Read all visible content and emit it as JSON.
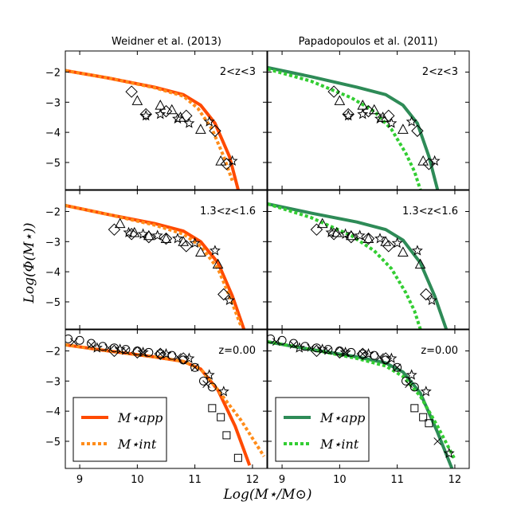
{
  "figure": {
    "ylabel": "Log(Φ(M⋆))",
    "xlabel": "Log(M⋆/M⊙)",
    "column_titles": [
      "Weidner et al. (2013)",
      "Papadopoulos et al. (2011)"
    ],
    "legend_app": "M⋆app",
    "legend_int": "M⋆int"
  },
  "colors": {
    "orange_app": "#ff4a00",
    "orange_int": "#ff8c1a",
    "green_app": "#2e8b57",
    "green_int": "#32cd32",
    "marker": "#000000"
  },
  "chart_data": [
    {
      "type": "line",
      "panel": "weidner-2<z<3",
      "title": "Weidner et al. (2013)",
      "redshift_label": "2<z<3",
      "xlim": [
        8.75,
        12.25
      ],
      "ylim": [
        -5.9,
        -1.3
      ],
      "x_ticks": [
        9,
        10,
        11,
        12
      ],
      "y_ticks": [
        -2,
        -3,
        -4,
        -5
      ],
      "series": [
        {
          "name": "M app",
          "style": "solid",
          "color": "#ff4a00",
          "x": [
            8.75,
            9.5,
            10.3,
            10.8,
            11.1,
            11.35,
            11.6,
            11.75
          ],
          "y": [
            -1.95,
            -2.2,
            -2.5,
            -2.75,
            -3.1,
            -3.7,
            -4.8,
            -5.9
          ]
        },
        {
          "name": "M int",
          "style": "dotted",
          "color": "#ff8c1a",
          "x": [
            8.75,
            9.5,
            10.3,
            10.8,
            11.05,
            11.3,
            11.5,
            11.65
          ],
          "y": [
            -1.95,
            -2.2,
            -2.52,
            -2.8,
            -3.2,
            -3.9,
            -4.8,
            -5.6
          ]
        }
      ],
      "markers": [
        {
          "shape": "diamond",
          "x": [
            9.9,
            10.15,
            10.5,
            10.85,
            11.35,
            11.55
          ],
          "y": [
            -2.65,
            -3.4,
            -3.3,
            -3.45,
            -3.95,
            -5.05
          ]
        },
        {
          "shape": "triangle",
          "x": [
            10.0,
            10.4,
            10.6,
            10.75,
            11.1,
            11.45
          ],
          "y": [
            -2.95,
            -3.1,
            -3.25,
            -3.5,
            -3.9,
            -4.95
          ]
        },
        {
          "shape": "star",
          "x": [
            10.15,
            10.4,
            10.7,
            10.9,
            11.25,
            11.65
          ],
          "y": [
            -3.45,
            -3.4,
            -3.55,
            -3.7,
            -3.65,
            -4.95
          ]
        }
      ]
    },
    {
      "type": "line",
      "panel": "papadopoulos-2<z<3",
      "title": "Papadopoulos et al. (2011)",
      "redshift_label": "2<z<3",
      "xlim": [
        8.75,
        12.25
      ],
      "ylim": [
        -5.9,
        -1.3
      ],
      "x_ticks": [
        9,
        10,
        11,
        12
      ],
      "y_ticks": [
        -2,
        -3,
        -4,
        -5
      ],
      "series": [
        {
          "name": "M app",
          "style": "solid",
          "color": "#2e8b57",
          "x": [
            8.75,
            9.5,
            10.3,
            10.8,
            11.1,
            11.35,
            11.55,
            11.7
          ],
          "y": [
            -1.85,
            -2.15,
            -2.5,
            -2.75,
            -3.1,
            -3.7,
            -4.8,
            -5.9
          ]
        },
        {
          "name": "M int",
          "style": "dotted",
          "color": "#32cd32",
          "x": [
            8.75,
            9.5,
            10.2,
            10.6,
            10.9,
            11.15,
            11.3,
            11.4
          ],
          "y": [
            -1.9,
            -2.3,
            -2.85,
            -3.3,
            -3.9,
            -4.7,
            -5.3,
            -5.9
          ]
        }
      ],
      "markers": [
        {
          "shape": "diamond",
          "x": [
            9.9,
            10.15,
            10.5,
            10.85,
            11.35,
            11.55
          ],
          "y": [
            -2.65,
            -3.4,
            -3.3,
            -3.45,
            -3.95,
            -5.05
          ]
        },
        {
          "shape": "triangle",
          "x": [
            10.0,
            10.4,
            10.6,
            10.75,
            11.1,
            11.45
          ],
          "y": [
            -2.95,
            -3.1,
            -3.25,
            -3.5,
            -3.9,
            -4.95
          ]
        },
        {
          "shape": "star",
          "x": [
            10.15,
            10.4,
            10.7,
            10.9,
            11.25,
            11.65
          ],
          "y": [
            -3.45,
            -3.4,
            -3.55,
            -3.7,
            -3.65,
            -4.95
          ]
        }
      ]
    },
    {
      "type": "line",
      "panel": "weidner-1.3<z<1.6",
      "title": "Weidner et al. (2013)",
      "redshift_label": "1.3<z<1.6",
      "xlim": [
        8.75,
        12.25
      ],
      "ylim": [
        -5.9,
        -1.3
      ],
      "x_ticks": [
        9,
        10,
        11,
        12
      ],
      "y_ticks": [
        -2,
        -3,
        -4,
        -5
      ],
      "series": [
        {
          "name": "M app",
          "style": "solid",
          "color": "#ff4a00",
          "x": [
            8.75,
            9.5,
            10.3,
            10.8,
            11.1,
            11.4,
            11.65,
            11.85
          ],
          "y": [
            -1.8,
            -2.1,
            -2.4,
            -2.65,
            -3.0,
            -3.7,
            -4.8,
            -5.9
          ]
        },
        {
          "name": "M int",
          "style": "dotted",
          "color": "#ff8c1a",
          "x": [
            8.75,
            9.5,
            10.3,
            10.8,
            11.1,
            11.4,
            11.6,
            11.8
          ],
          "y": [
            -1.8,
            -2.1,
            -2.45,
            -2.75,
            -3.15,
            -3.9,
            -4.8,
            -5.8
          ]
        }
      ],
      "markers": [
        {
          "shape": "diamond",
          "x": [
            9.6,
            9.9,
            10.2,
            10.5,
            10.85,
            11.5
          ],
          "y": [
            -2.6,
            -2.75,
            -2.85,
            -2.9,
            -3.15,
            -4.75
          ]
        },
        {
          "shape": "triangle",
          "x": [
            9.7,
            9.95,
            10.2,
            10.5,
            10.8,
            11.1,
            11.4
          ],
          "y": [
            -2.4,
            -2.7,
            -2.8,
            -2.9,
            -3.0,
            -3.35,
            -3.75
          ]
        },
        {
          "shape": "star",
          "x": [
            9.85,
            10.1,
            10.35,
            10.7,
            11.0,
            11.35,
            11.6
          ],
          "y": [
            -2.7,
            -2.75,
            -2.8,
            -2.9,
            -3.05,
            -3.3,
            -4.95
          ]
        }
      ]
    },
    {
      "type": "line",
      "panel": "papadopoulos-1.3<z<1.6",
      "title": "Papadopoulos et al. (2011)",
      "redshift_label": "1.3<z<1.6",
      "xlim": [
        8.75,
        12.25
      ],
      "ylim": [
        -5.9,
        -1.3
      ],
      "x_ticks": [
        9,
        10,
        11,
        12
      ],
      "y_ticks": [
        -2,
        -3,
        -4,
        -5
      ],
      "series": [
        {
          "name": "M app",
          "style": "solid",
          "color": "#2e8b57",
          "x": [
            8.75,
            9.5,
            10.3,
            10.8,
            11.1,
            11.4,
            11.65,
            11.85
          ],
          "y": [
            -1.75,
            -2.05,
            -2.35,
            -2.6,
            -2.95,
            -3.7,
            -4.8,
            -5.9
          ]
        },
        {
          "name": "M int",
          "style": "dotted",
          "color": "#32cd32",
          "x": [
            8.75,
            9.5,
            10.2,
            10.6,
            10.9,
            11.15,
            11.3,
            11.4
          ],
          "y": [
            -1.75,
            -2.2,
            -2.8,
            -3.3,
            -3.9,
            -4.7,
            -5.3,
            -5.9
          ]
        }
      ],
      "markers": [
        {
          "shape": "diamond",
          "x": [
            9.6,
            9.9,
            10.2,
            10.5,
            10.85,
            11.5
          ],
          "y": [
            -2.6,
            -2.75,
            -2.85,
            -2.9,
            -3.15,
            -4.75
          ]
        },
        {
          "shape": "triangle",
          "x": [
            9.7,
            9.95,
            10.2,
            10.5,
            10.8,
            11.1,
            11.4
          ],
          "y": [
            -2.4,
            -2.7,
            -2.8,
            -2.9,
            -3.0,
            -3.35,
            -3.75
          ]
        },
        {
          "shape": "star",
          "x": [
            9.85,
            10.1,
            10.35,
            10.7,
            11.0,
            11.35,
            11.6
          ],
          "y": [
            -2.7,
            -2.75,
            -2.8,
            -2.9,
            -3.05,
            -3.3,
            -4.95
          ]
        }
      ]
    },
    {
      "type": "line",
      "panel": "weidner-z=0.00",
      "title": "Weidner et al. (2013)",
      "redshift_label": "z=0.00",
      "xlim": [
        8.75,
        12.25
      ],
      "ylim": [
        -5.9,
        -1.3
      ],
      "x_ticks": [
        9,
        10,
        11,
        12
      ],
      "y_ticks": [
        -2,
        -3,
        -4,
        -5
      ],
      "series": [
        {
          "name": "M app",
          "style": "solid",
          "color": "#ff4a00",
          "x": [
            8.75,
            9.5,
            10.3,
            10.8,
            11.1,
            11.4,
            11.7,
            11.95
          ],
          "y": [
            -1.8,
            -2.0,
            -2.2,
            -2.35,
            -2.6,
            -3.3,
            -4.5,
            -5.8
          ]
        },
        {
          "name": "M int",
          "style": "dotted",
          "color": "#ff8c1a",
          "x": [
            8.75,
            9.5,
            10.3,
            10.8,
            11.1,
            11.4,
            11.8,
            12.2
          ],
          "y": [
            -1.8,
            -2.0,
            -2.2,
            -2.35,
            -2.6,
            -3.3,
            -4.3,
            -5.5
          ]
        }
      ],
      "markers": [
        {
          "shape": "circle",
          "x": [
            8.8,
            9.0,
            9.2,
            9.4,
            9.6,
            9.8,
            10.0,
            10.2,
            10.4,
            10.6,
            10.8,
            11.0,
            11.15,
            11.3
          ],
          "y": [
            -1.6,
            -1.65,
            -1.75,
            -1.85,
            -1.9,
            -1.95,
            -2.0,
            -2.05,
            -2.1,
            -2.15,
            -2.3,
            -2.55,
            -3.0,
            -3.2
          ]
        },
        {
          "shape": "star",
          "x": [
            9.3,
            9.7,
            10.1,
            10.5,
            10.9,
            11.25,
            11.5
          ],
          "y": [
            -1.9,
            -1.95,
            -2.05,
            -2.1,
            -2.25,
            -2.8,
            -3.35
          ]
        },
        {
          "shape": "cross",
          "x": [
            8.9,
            9.2,
            9.5,
            9.8,
            10.1,
            10.4,
            10.7,
            11.0,
            11.2
          ],
          "y": [
            -1.7,
            -1.8,
            -1.9,
            -2.0,
            -2.05,
            -2.1,
            -2.2,
            -2.55,
            -3.1
          ]
        },
        {
          "shape": "diamond",
          "x": [
            9.6,
            10.0,
            10.4,
            10.8
          ],
          "y": [
            -2.0,
            -2.05,
            -2.1,
            -2.25
          ]
        },
        {
          "shape": "square",
          "x": [
            11.3,
            11.45,
            11.55,
            11.75
          ],
          "y": [
            -3.9,
            -4.2,
            -4.8,
            -5.55
          ]
        }
      ]
    },
    {
      "type": "line",
      "panel": "papadopoulos-z=0.00",
      "title": "Papadopoulos et al. (2011)",
      "redshift_label": "z=0.00",
      "xlim": [
        8.75,
        12.25
      ],
      "ylim": [
        -5.9,
        -1.3
      ],
      "x_ticks": [
        9,
        10,
        11,
        12
      ],
      "y_ticks": [
        -2,
        -3,
        -4,
        -5
      ],
      "series": [
        {
          "name": "M app",
          "style": "solid",
          "color": "#2e8b57",
          "x": [
            8.75,
            9.5,
            10.3,
            10.8,
            11.1,
            11.4,
            11.7,
            11.95
          ],
          "y": [
            -1.7,
            -1.95,
            -2.2,
            -2.4,
            -2.7,
            -3.4,
            -4.7,
            -5.9
          ]
        },
        {
          "name": "M int",
          "style": "dotted",
          "color": "#32cd32",
          "x": [
            8.75,
            9.5,
            10.3,
            10.8,
            11.1,
            11.4,
            11.7,
            12.0
          ],
          "y": [
            -1.7,
            -1.95,
            -2.25,
            -2.5,
            -2.85,
            -3.5,
            -4.5,
            -5.6
          ]
        }
      ],
      "markers": [
        {
          "shape": "circle",
          "x": [
            8.8,
            9.0,
            9.2,
            9.4,
            9.6,
            9.8,
            10.0,
            10.2,
            10.4,
            10.6,
            10.8,
            11.0,
            11.15,
            11.3
          ],
          "y": [
            -1.6,
            -1.65,
            -1.75,
            -1.85,
            -1.9,
            -1.95,
            -2.0,
            -2.05,
            -2.1,
            -2.15,
            -2.3,
            -2.55,
            -3.0,
            -3.2
          ]
        },
        {
          "shape": "star",
          "x": [
            9.3,
            9.7,
            10.1,
            10.5,
            10.9,
            11.25,
            11.5,
            11.9
          ],
          "y": [
            -1.9,
            -1.95,
            -2.05,
            -2.1,
            -2.25,
            -2.8,
            -3.35,
            -5.4
          ]
        },
        {
          "shape": "cross",
          "x": [
            8.9,
            9.2,
            9.5,
            9.8,
            10.1,
            10.4,
            10.7,
            11.0,
            11.2,
            11.7
          ],
          "y": [
            -1.7,
            -1.8,
            -1.9,
            -2.0,
            -2.05,
            -2.1,
            -2.2,
            -2.55,
            -3.1,
            -5.0
          ]
        },
        {
          "shape": "diamond",
          "x": [
            9.6,
            10.0,
            10.4,
            10.8
          ],
          "y": [
            -2.0,
            -2.05,
            -2.1,
            -2.25
          ]
        },
        {
          "shape": "square",
          "x": [
            11.3,
            11.45,
            11.55
          ],
          "y": [
            -3.9,
            -4.2,
            -4.4
          ]
        }
      ]
    }
  ]
}
